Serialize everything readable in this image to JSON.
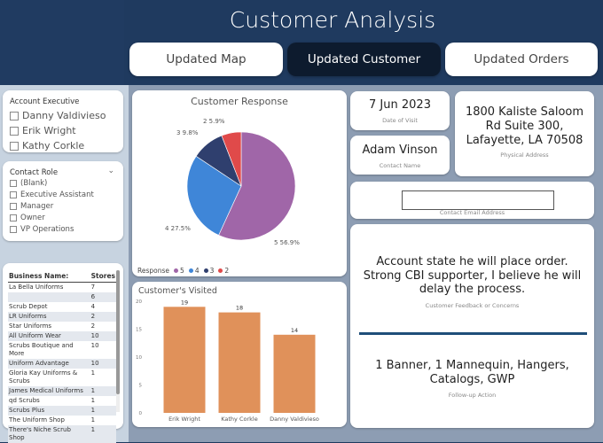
{
  "header": {
    "title": "Customer Analysis",
    "nav": [
      {
        "label": "Updated Map",
        "active": false
      },
      {
        "label": "Updated Customer",
        "active": true
      },
      {
        "label": "Updated Orders",
        "active": false
      }
    ]
  },
  "slicers": {
    "account_executive": {
      "title": "Account Executive",
      "items": [
        "Danny Valdivieso",
        "Erik Wright",
        "Kathy Corkle"
      ]
    },
    "contact_role": {
      "title": "Contact Role",
      "items": [
        "(Blank)",
        "Executive Assistant",
        "Manager",
        "Owner",
        "VP Operations"
      ]
    }
  },
  "business_table": {
    "headers": [
      "Business Name:",
      "Stores"
    ],
    "rows": [
      [
        "La Bella Uniforms",
        "7"
      ],
      [
        "",
        "6"
      ],
      [
        "Scrub Depot",
        "4"
      ],
      [
        "LR Uniforms",
        "2"
      ],
      [
        "Star Uniforms",
        "2"
      ],
      [
        "All Uniform Wear",
        "10"
      ],
      [
        "Scrubs Boutique and More",
        "10"
      ],
      [
        "Uniform Advantage",
        "10"
      ],
      [
        "Gloria Kay Uniforms & Scrubs",
        "1"
      ],
      [
        "James Medical Uniforms",
        "1"
      ],
      [
        "qd Scrubs",
        "1"
      ],
      [
        "Scrubs Plus",
        "1"
      ],
      [
        "The Uniform Shop",
        "1"
      ],
      [
        "There's Niche Scrub Shop",
        "1"
      ]
    ]
  },
  "customer_response": {
    "title": "Customer Response",
    "legend_title": "Response",
    "legend": [
      {
        "label": "5",
        "color": "#a066a8"
      },
      {
        "label": "4",
        "color": "#3f86d8"
      },
      {
        "label": "3",
        "color": "#2f3f6e"
      },
      {
        "label": "2",
        "color": "#e04a4a"
      }
    ],
    "slice_labels": [
      "5 56.9%",
      "4 27.5%",
      "3 9.8%",
      "2 5.9%"
    ]
  },
  "customers_visited": {
    "title": "Customer's Visited",
    "bar_color": "#e0915a"
  },
  "chart_data": [
    {
      "type": "pie",
      "title": "Customer Response",
      "categories": [
        "5",
        "4",
        "3",
        "2"
      ],
      "values": [
        56.9,
        27.5,
        9.8,
        5.9
      ],
      "colors": [
        "#a066a8",
        "#3f86d8",
        "#2f3f6e",
        "#e04a4a"
      ],
      "legend_title": "Response",
      "legend_position": "bottom-left"
    },
    {
      "type": "bar",
      "title": "Customer's Visited",
      "categories": [
        "Erik Wright",
        "Kathy Corkle",
        "Danny Valdivieso"
      ],
      "values": [
        19,
        18,
        14
      ],
      "ylim": [
        0,
        20
      ],
      "yticks": [
        0,
        5,
        10,
        15,
        20
      ],
      "grid": false
    }
  ],
  "date_of_visit": {
    "value": "7 Jun 2023",
    "label": "Date of Visit"
  },
  "contact_name": {
    "value": "Adam Vinson",
    "label": "Contact Name"
  },
  "address": {
    "lines": [
      "1800 Kaliste Saloom",
      "Rd Suite 300,",
      "Lafayette, LA 70508"
    ],
    "label": "Physical Address"
  },
  "email": {
    "value": "",
    "label": "Contact Email Address"
  },
  "feedback": {
    "lines": [
      "Account state he will place order.",
      "Strong CBI supporter, I believe he will",
      "delay the process."
    ],
    "label": "Customer Feedback or Concerns"
  },
  "followup": {
    "lines": [
      "1 Banner, 1 Mannequin, Hangers,",
      "Catalogs, GWP"
    ],
    "label": "Follow-up Action"
  }
}
